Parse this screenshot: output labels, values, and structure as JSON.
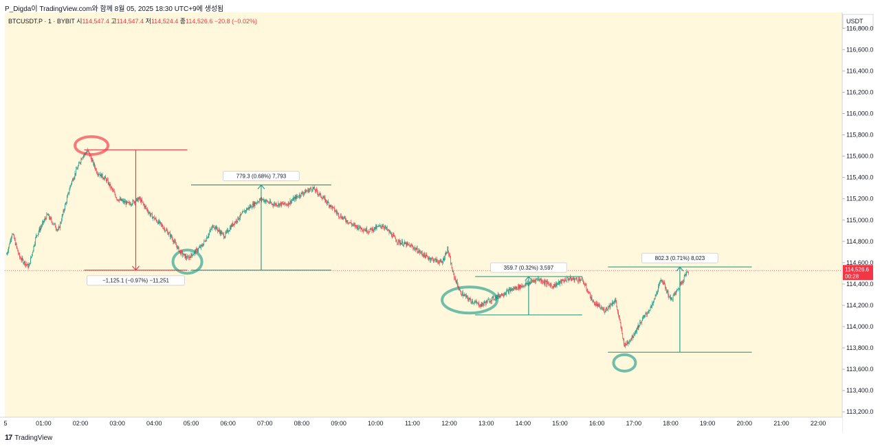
{
  "header": {
    "text": "P_Digda이 TradingView.com와 함께 8월 05, 2025 18:30 UTC+9에 생성됨"
  },
  "legend": {
    "symbol": "BTCUSDT.P · 1 · BYBIT",
    "open_label": "시",
    "open": "114,547.4",
    "high_label": "고",
    "high": "114,547.4",
    "low_label": "저",
    "low": "114,524.4",
    "close_label": "종",
    "close": "114,526.6",
    "change": "−20.8 (−0.02%)"
  },
  "price_axis": {
    "currency": "USDT",
    "last_price": "114,526.6",
    "countdown": "00:28"
  },
  "footer": {
    "brand": "TradingView"
  },
  "colors": {
    "background": "#fff8dc",
    "up": "#089981",
    "down": "#f23645",
    "teal": "#22a08c",
    "red": "#f23645"
  },
  "chart_data": {
    "type": "line",
    "ylim": [
      113150,
      116950
    ],
    "y_ticks": [
      113200,
      113400,
      113600,
      113800,
      114000,
      114200,
      114400,
      114600,
      114800,
      115000,
      115200,
      115400,
      115600,
      115800,
      116000,
      116200,
      116400,
      116600,
      116800
    ],
    "y_tick_labels": [
      "113,200.0",
      "113,400.0",
      "113,600.0",
      "113,800.0",
      "114,000.0",
      "114,200.0",
      "114,400.0",
      "114,600.0",
      "114,800.0",
      "115,000.0",
      "115,200.0",
      "115,400.0",
      "115,600.0",
      "115,800.0",
      "116,000.0",
      "116,200.0",
      "116,400.0",
      "116,600.0",
      "116,800.0"
    ],
    "x_tick_labels": [
      "5",
      "01:00",
      "02:00",
      "03:00",
      "04:00",
      "05:00",
      "06:00",
      "07:00",
      "08:00",
      "09:00",
      "10:00",
      "11:00",
      "12:00",
      "13:00",
      "14:00",
      "15:00",
      "16:00",
      "17:00",
      "18:00",
      "19:00",
      "20:00",
      "21:00",
      "22:00"
    ],
    "x_tick_hours": [
      0,
      1,
      2,
      3,
      4,
      5,
      6,
      7,
      8,
      9,
      10,
      11,
      12,
      13,
      14,
      15,
      16,
      17,
      18,
      19,
      20,
      21,
      22
    ],
    "x_range_hours": [
      -0.05,
      22.65
    ],
    "price_path": [
      [
        0.0,
        114680
      ],
      [
        0.15,
        114880
      ],
      [
        0.35,
        114650
      ],
      [
        0.6,
        114560
      ],
      [
        0.8,
        114850
      ],
      [
        1.1,
        115050
      ],
      [
        1.4,
        114900
      ],
      [
        1.75,
        115350
      ],
      [
        2.05,
        115600
      ],
      [
        2.2,
        115650
      ],
      [
        2.45,
        115450
      ],
      [
        2.7,
        115380
      ],
      [
        3.0,
        115200
      ],
      [
        3.3,
        115150
      ],
      [
        3.6,
        115200
      ],
      [
        3.9,
        115050
      ],
      [
        4.2,
        114950
      ],
      [
        4.45,
        114850
      ],
      [
        4.7,
        114700
      ],
      [
        4.9,
        114640
      ],
      [
        5.1,
        114700
      ],
      [
        5.3,
        114760
      ],
      [
        5.6,
        114950
      ],
      [
        5.9,
        114850
      ],
      [
        6.1,
        114950
      ],
      [
        6.5,
        115100
      ],
      [
        6.9,
        115200
      ],
      [
        7.2,
        115150
      ],
      [
        7.6,
        115150
      ],
      [
        8.0,
        115250
      ],
      [
        8.3,
        115300
      ],
      [
        8.6,
        115200
      ],
      [
        9.0,
        115050
      ],
      [
        9.4,
        114950
      ],
      [
        9.8,
        114900
      ],
      [
        10.2,
        114950
      ],
      [
        10.6,
        114800
      ],
      [
        11.0,
        114750
      ],
      [
        11.4,
        114650
      ],
      [
        11.8,
        114600
      ],
      [
        11.95,
        114730
      ],
      [
        12.1,
        114500
      ],
      [
        12.3,
        114320
      ],
      [
        12.55,
        114250
      ],
      [
        12.85,
        114200
      ],
      [
        13.1,
        114250
      ],
      [
        13.4,
        114300
      ],
      [
        13.7,
        114350
      ],
      [
        14.1,
        114400
      ],
      [
        14.4,
        114450
      ],
      [
        14.8,
        114380
      ],
      [
        15.2,
        114450
      ],
      [
        15.6,
        114440
      ],
      [
        15.9,
        114230
      ],
      [
        16.2,
        114150
      ],
      [
        16.5,
        114250
      ],
      [
        16.75,
        113820
      ],
      [
        16.95,
        113900
      ],
      [
        17.2,
        114050
      ],
      [
        17.5,
        114200
      ],
      [
        17.75,
        114450
      ],
      [
        18.0,
        114250
      ],
      [
        18.2,
        114350
      ],
      [
        18.4,
        114490
      ],
      [
        18.5,
        114527
      ]
    ],
    "measurements": [
      {
        "color": "red",
        "from": 115660,
        "to": 114530,
        "label": "−1,125.1 (−0.97%) −11,251",
        "direction": "down"
      },
      {
        "color": "teal",
        "from": 114530,
        "to": 115330,
        "label": "779.3 (0.68%) 7,793",
        "direction": "up"
      },
      {
        "color": "teal",
        "from": 114110,
        "to": 114470,
        "label": "359.7 (0.32%) 3,597",
        "direction": "up"
      },
      {
        "color": "teal",
        "from": 113760,
        "to": 114560,
        "label": "802.3 (0.71%) 8,023",
        "direction": "up"
      }
    ]
  }
}
